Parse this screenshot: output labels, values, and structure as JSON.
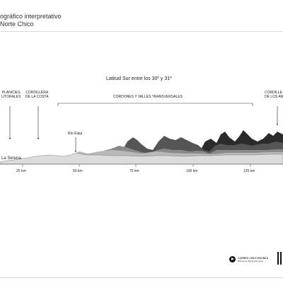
{
  "header": {
    "title_line1": "ográfico interpretativo",
    "title_line2": "Norte Chico"
  },
  "subtitle": "Latitud Sur entre los 30º y 31º",
  "regions": {
    "planicies": "PLANICIES\nLITORALES",
    "cordillera_costa": "CORDILLERA\nDE LA COSTA",
    "cordones": "CORDONES Y VALLES TRANSVERSALES",
    "cordillera_andes": "CORDILLE\nDE LOS AN"
  },
  "places": {
    "la_serena": "La Serena",
    "rio_elqui": "Río Elqui"
  },
  "axis": {
    "ticks": [
      "25 km",
      "50 km",
      "75 km",
      "100 km",
      "125 km"
    ]
  },
  "footer": {
    "logo_line1": "CORREO CHILE ENLÍNEA",
    "logo_line2": "Biblioteca Digital Educativa"
  },
  "colors": {
    "layer_darkest": "#2b2b2b",
    "layer_dark": "#555555",
    "layer_mid": "#8a8a8a",
    "layer_light": "#b9b9b9",
    "layer_pale": "#dcdcdc"
  }
}
